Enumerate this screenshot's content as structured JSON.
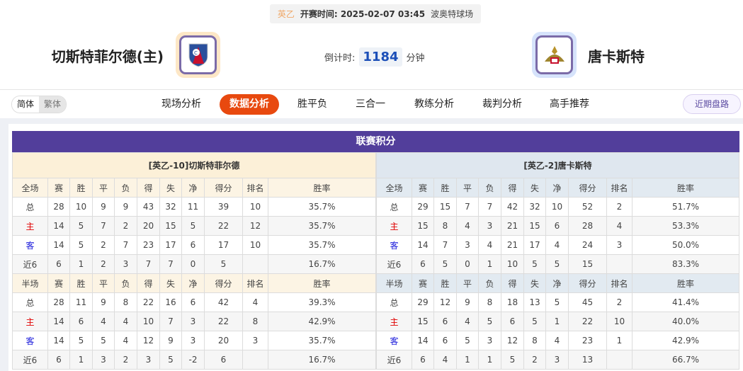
{
  "match": {
    "league": "英乙",
    "time_label": "开赛时间:",
    "time": "2025-02-07 03:45",
    "venue": "波奥特球场"
  },
  "home": {
    "name": "切斯特菲尔德(主)"
  },
  "away": {
    "name": "唐卡斯特"
  },
  "countdown": {
    "label": "倒计时:",
    "value": "1184",
    "unit": "分钟"
  },
  "lang": {
    "simplified": "简体",
    "traditional": "繁体"
  },
  "tabs": [
    "现场分析",
    "数据分析",
    "胜平负",
    "三合一",
    "教练分析",
    "裁判分析",
    "高手推荐"
  ],
  "active_tab": "数据分析",
  "recent_button": "近期盘路",
  "standings": {
    "title": "联赛积分",
    "columns_full": [
      "全场",
      "赛",
      "胜",
      "平",
      "负",
      "得",
      "失",
      "净",
      "得分",
      "排名",
      "胜率"
    ],
    "columns_half": [
      "半场",
      "赛",
      "胜",
      "平",
      "负",
      "得",
      "失",
      "净",
      "得分",
      "排名",
      "胜率"
    ],
    "home": {
      "label": "[英乙-10]切斯特菲尔德",
      "full": [
        [
          "总",
          "28",
          "10",
          "9",
          "9",
          "43",
          "32",
          "11",
          "39",
          "10",
          "35.7%"
        ],
        [
          "主",
          "14",
          "5",
          "7",
          "2",
          "20",
          "15",
          "5",
          "22",
          "12",
          "35.7%"
        ],
        [
          "客",
          "14",
          "5",
          "2",
          "7",
          "23",
          "17",
          "6",
          "17",
          "10",
          "35.7%"
        ],
        [
          "近6",
          "6",
          "1",
          "2",
          "3",
          "7",
          "7",
          "0",
          "5",
          "",
          "16.7%"
        ]
      ],
      "half": [
        [
          "总",
          "28",
          "11",
          "9",
          "8",
          "22",
          "16",
          "6",
          "42",
          "4",
          "39.3%"
        ],
        [
          "主",
          "14",
          "6",
          "4",
          "4",
          "10",
          "7",
          "3",
          "22",
          "8",
          "42.9%"
        ],
        [
          "客",
          "14",
          "5",
          "5",
          "4",
          "12",
          "9",
          "3",
          "20",
          "3",
          "35.7%"
        ],
        [
          "近6",
          "6",
          "1",
          "3",
          "2",
          "3",
          "5",
          "-2",
          "6",
          "",
          "16.7%"
        ]
      ]
    },
    "away": {
      "label": "[英乙-2]唐卡斯特",
      "full": [
        [
          "总",
          "29",
          "15",
          "7",
          "7",
          "42",
          "32",
          "10",
          "52",
          "2",
          "51.7%"
        ],
        [
          "主",
          "15",
          "8",
          "4",
          "3",
          "21",
          "15",
          "6",
          "28",
          "4",
          "53.3%"
        ],
        [
          "客",
          "14",
          "7",
          "3",
          "4",
          "21",
          "17",
          "4",
          "24",
          "3",
          "50.0%"
        ],
        [
          "近6",
          "6",
          "5",
          "0",
          "1",
          "10",
          "5",
          "5",
          "15",
          "",
          "83.3%"
        ]
      ],
      "half": [
        [
          "总",
          "29",
          "12",
          "9",
          "8",
          "18",
          "13",
          "5",
          "45",
          "2",
          "41.4%"
        ],
        [
          "主",
          "15",
          "6",
          "4",
          "5",
          "6",
          "5",
          "1",
          "22",
          "10",
          "40.0%"
        ],
        [
          "客",
          "14",
          "6",
          "5",
          "3",
          "12",
          "8",
          "4",
          "23",
          "1",
          "42.9%"
        ],
        [
          "近6",
          "6",
          "4",
          "1",
          "1",
          "5",
          "2",
          "3",
          "13",
          "",
          "66.7%"
        ]
      ]
    }
  },
  "colors": {
    "title_bar": "#523e9b",
    "active_tab": "#e8490f",
    "home_label": "#e00000",
    "away_label": "#1a1adb"
  }
}
